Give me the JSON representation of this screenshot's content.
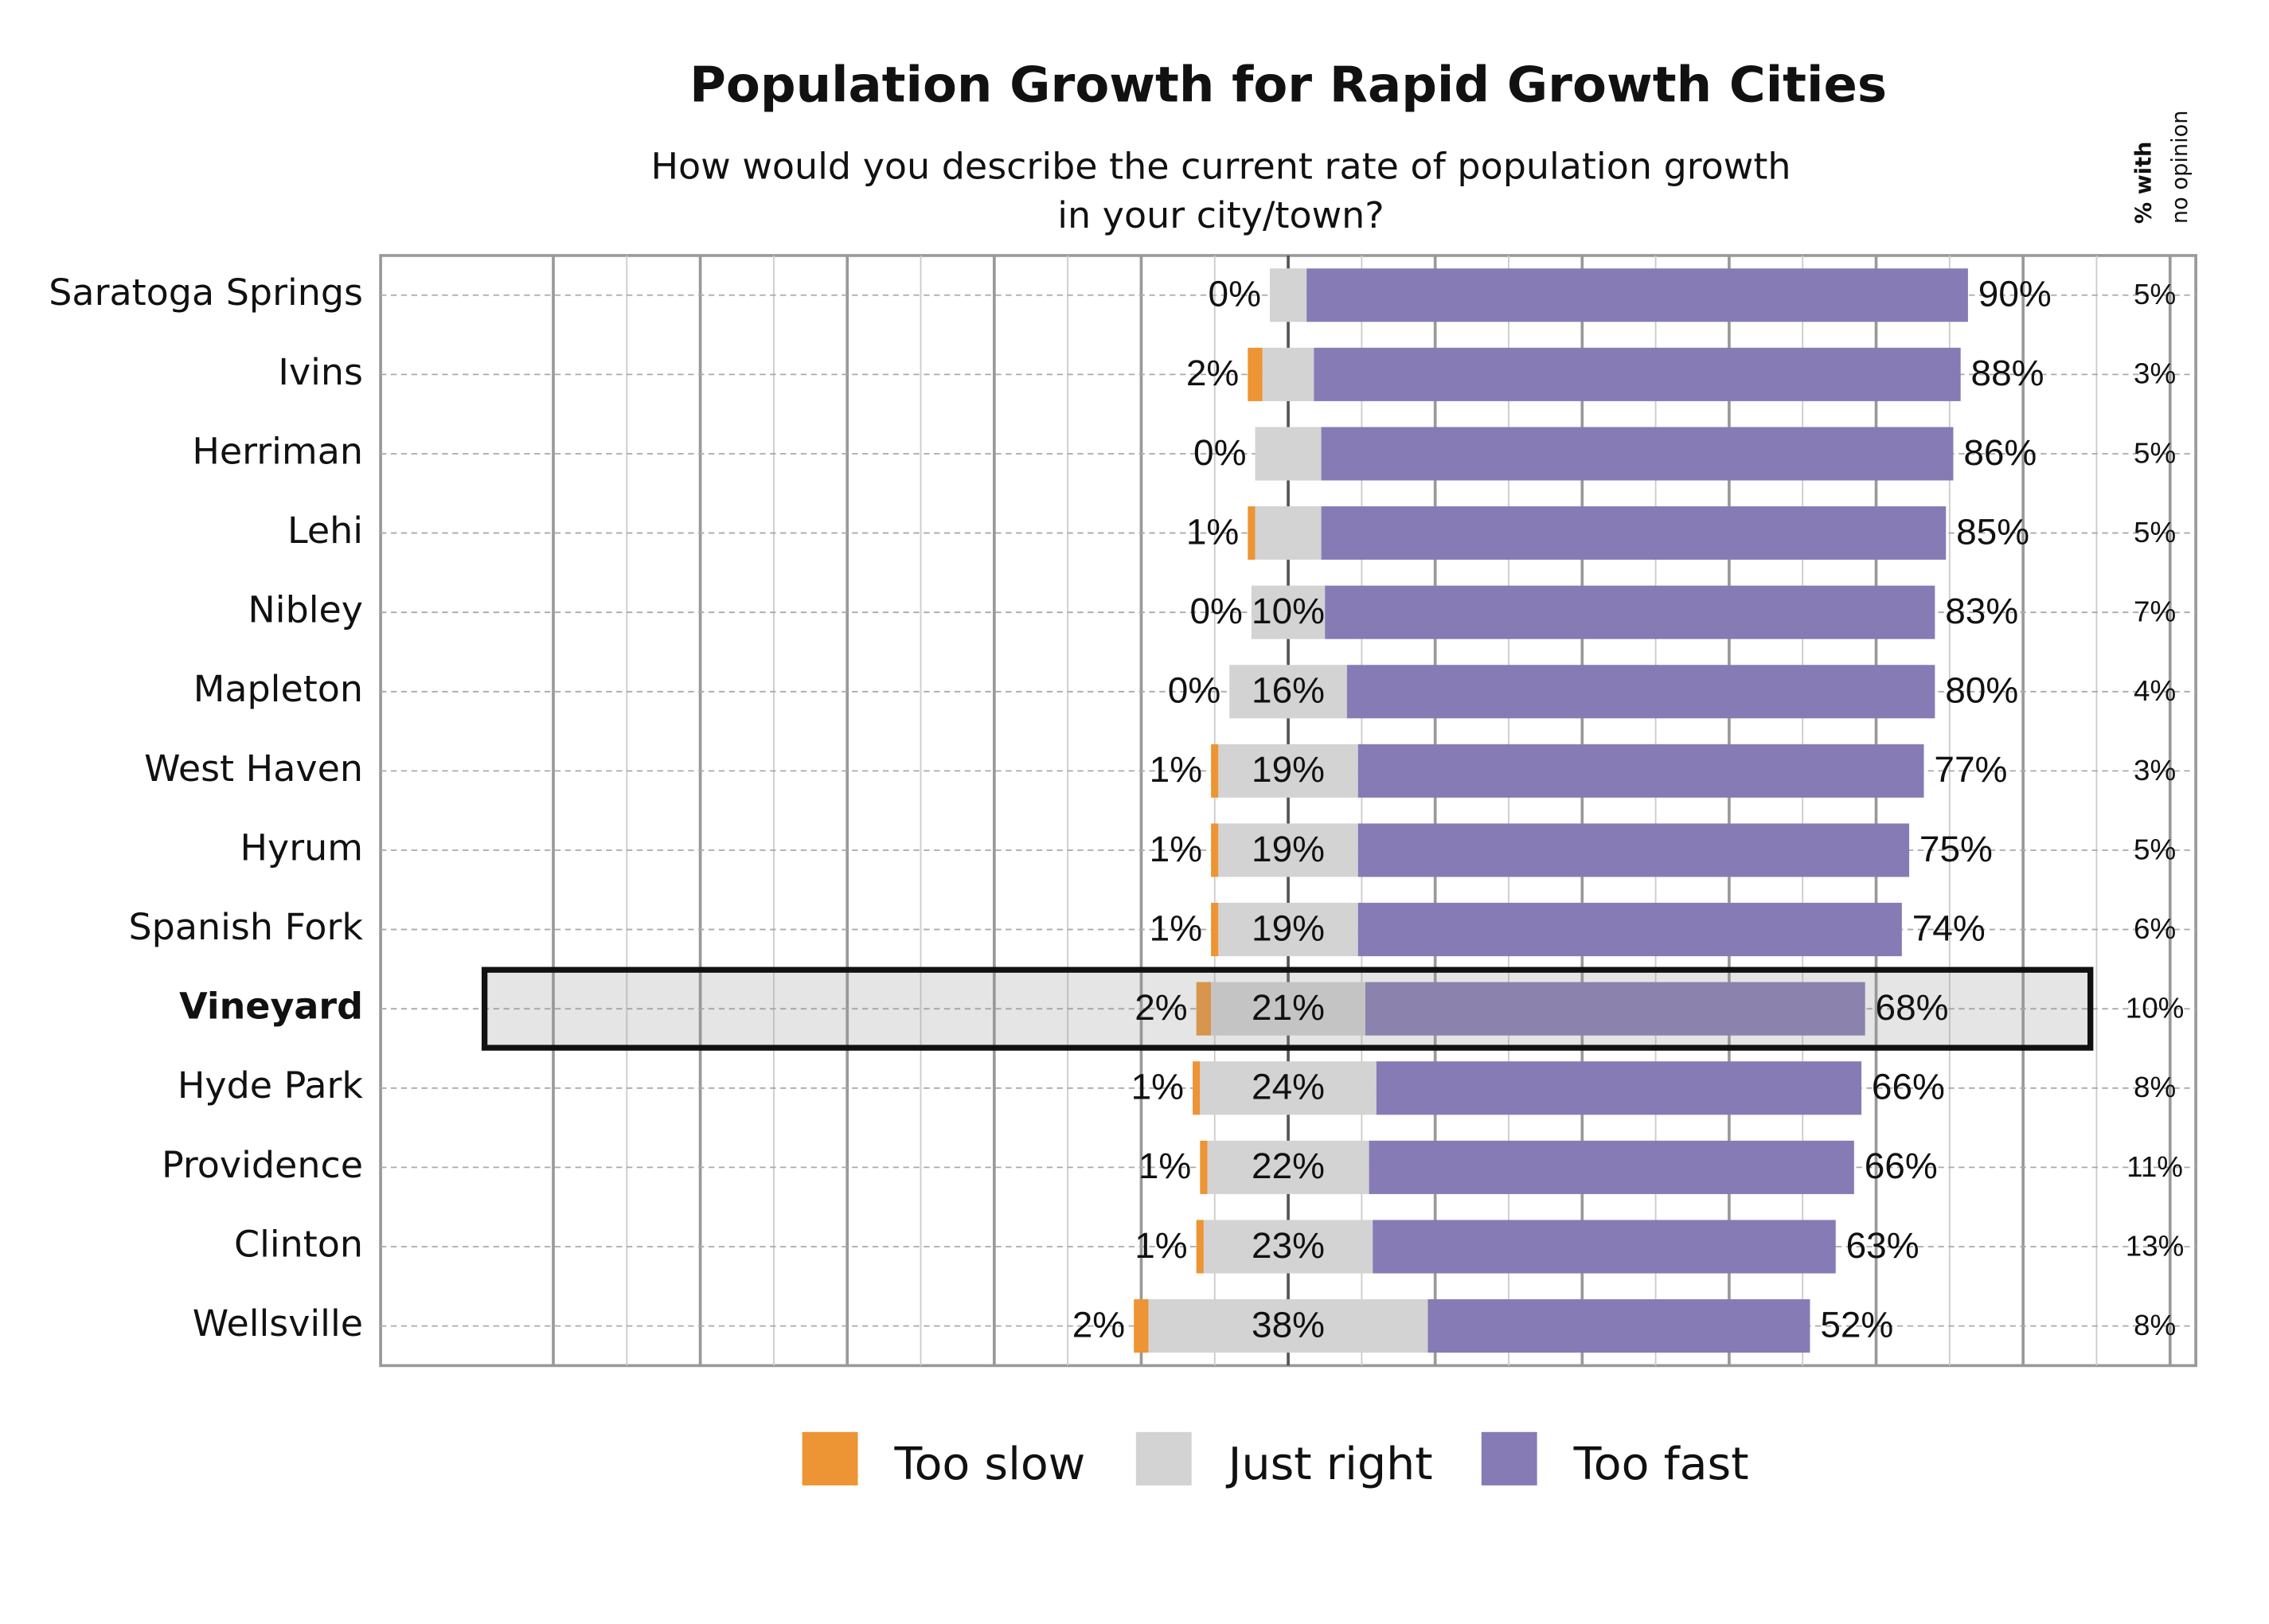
{
  "chart_data": {
    "type": "diverging-bar",
    "title": "Population Growth for Rapid Growth Cities",
    "subtitle": [
      "How would you describe the current rate of population growth",
      "in your city/town?"
    ],
    "categories": [
      "Saratoga Springs",
      "Ivins",
      "Herriman",
      "Lehi",
      "Nibley",
      "Mapleton",
      "West Haven",
      "Hyrum",
      "Spanish Fork",
      "Vineyard",
      "Hyde Park",
      "Providence",
      "Clinton",
      "Wellsville"
    ],
    "highlight": "Vineyard",
    "series": [
      {
        "name": "Too slow",
        "color": "#ED9434",
        "values": [
          0,
          2,
          0,
          1,
          0,
          0,
          1,
          1,
          1,
          2,
          1,
          1,
          1,
          2
        ],
        "value_labels": [
          "0%",
          "2%",
          "0%",
          "1%",
          "0%",
          "0%",
          "1%",
          "1%",
          "1%",
          "2%",
          "1%",
          "1%",
          "1%",
          "2%"
        ]
      },
      {
        "name": "Just right",
        "color": "#D3D3D3",
        "values": [
          5,
          7,
          9,
          9,
          10,
          16,
          19,
          19,
          19,
          21,
          24,
          22,
          23,
          38
        ],
        "value_labels": [
          null,
          null,
          null,
          null,
          "10%",
          "16%",
          "19%",
          "19%",
          "19%",
          "21%",
          "24%",
          "22%",
          "23%",
          "38%"
        ]
      },
      {
        "name": "Too fast",
        "color": "#877BB6",
        "values": [
          90,
          88,
          86,
          85,
          83,
          80,
          77,
          75,
          74,
          68,
          66,
          66,
          63,
          52
        ],
        "value_labels": [
          "90%",
          "88%",
          "86%",
          "85%",
          "83%",
          "80%",
          "77%",
          "75%",
          "74%",
          "68%",
          "66%",
          "66%",
          "63%",
          "52%"
        ]
      }
    ],
    "no_opinion": {
      "label": [
        "% with",
        "no opinion"
      ],
      "values": [
        5,
        3,
        5,
        5,
        7,
        4,
        3,
        5,
        6,
        10,
        8,
        11,
        13,
        8
      ],
      "value_labels": [
        "5%",
        "3%",
        "5%",
        "5%",
        "7%",
        "4%",
        "3%",
        "5%",
        "6%",
        "10%",
        "8%",
        "11%",
        "13%",
        "8%"
      ]
    },
    "xlim": [
      -123.5,
      123.5
    ],
    "xticks": [
      -100,
      -90,
      -80,
      -70,
      -60,
      -50,
      -40,
      -30,
      -20,
      -10,
      0,
      10,
      20,
      30,
      40,
      50,
      60,
      70,
      80,
      90,
      100,
      110,
      120
    ],
    "grid": true
  }
}
